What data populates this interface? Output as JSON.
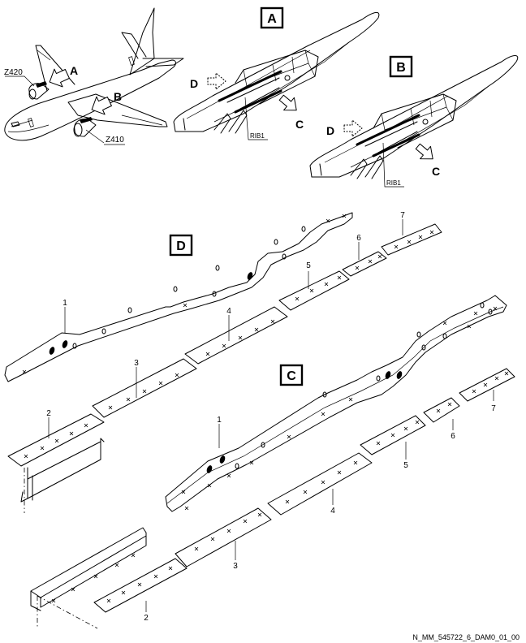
{
  "views": {
    "aircraft": {
      "callout_a": "A",
      "callout_b": "B",
      "zone_upper": "Z420",
      "zone_lower": "Z410"
    },
    "detail_a": {
      "title": "A",
      "arrow_c": "C",
      "arrow_d": "D",
      "rib": "RIB1"
    },
    "detail_b": {
      "title": "B",
      "arrow_c": "C",
      "arrow_d": "D",
      "rib": "RIB1"
    },
    "view_d": {
      "title": "D",
      "items": [
        "1",
        "2",
        "3",
        "4",
        "5",
        "6",
        "7"
      ]
    },
    "view_c": {
      "title": "C",
      "items": [
        "1",
        "2",
        "3",
        "4",
        "5",
        "6",
        "7"
      ]
    }
  },
  "footer": {
    "reference": "N_MM_545722_6_DAM0_01_00"
  },
  "icons": [
    "solid-arrow-icon",
    "dashed-arrow-icon"
  ]
}
